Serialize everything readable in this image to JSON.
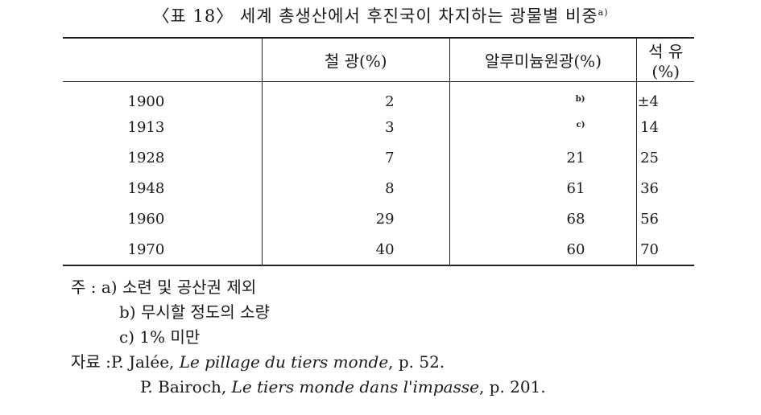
{
  "title": "〈표 18〉 세계 총생산에서 후진국이 차지하는 광물별 비중",
  "title_footnote": "a)",
  "table": {
    "headers": [
      "",
      "철 광(%)",
      "알루미늄원광(%)",
      "석 유(%)"
    ],
    "rows": [
      [
        "1900",
        "2",
        "b)",
        "±4"
      ],
      [
        "1913",
        "3",
        "c)",
        "14"
      ],
      [
        "1928",
        "7",
        "21",
        "25"
      ],
      [
        "1948",
        "8",
        "61",
        "36"
      ],
      [
        "1960",
        "29",
        "68",
        "56"
      ],
      [
        "1970",
        "40",
        "60",
        "70"
      ]
    ]
  },
  "notes": {
    "label": "주 :",
    "a": "a) 소련 및 공산권 제외",
    "b": "b) 무시할 정도의 소량",
    "c": "c) 1% 미만"
  },
  "sources": {
    "label": "자료 :",
    "s1": {
      "author": "P. Jalée, ",
      "title": "Le pillage du tiers monde",
      "page": ", p. 52."
    },
    "s2": {
      "author": "P. Bairoch, ",
      "title": "Le tiers monde dans l'impasse",
      "page": ", p. 201."
    }
  }
}
